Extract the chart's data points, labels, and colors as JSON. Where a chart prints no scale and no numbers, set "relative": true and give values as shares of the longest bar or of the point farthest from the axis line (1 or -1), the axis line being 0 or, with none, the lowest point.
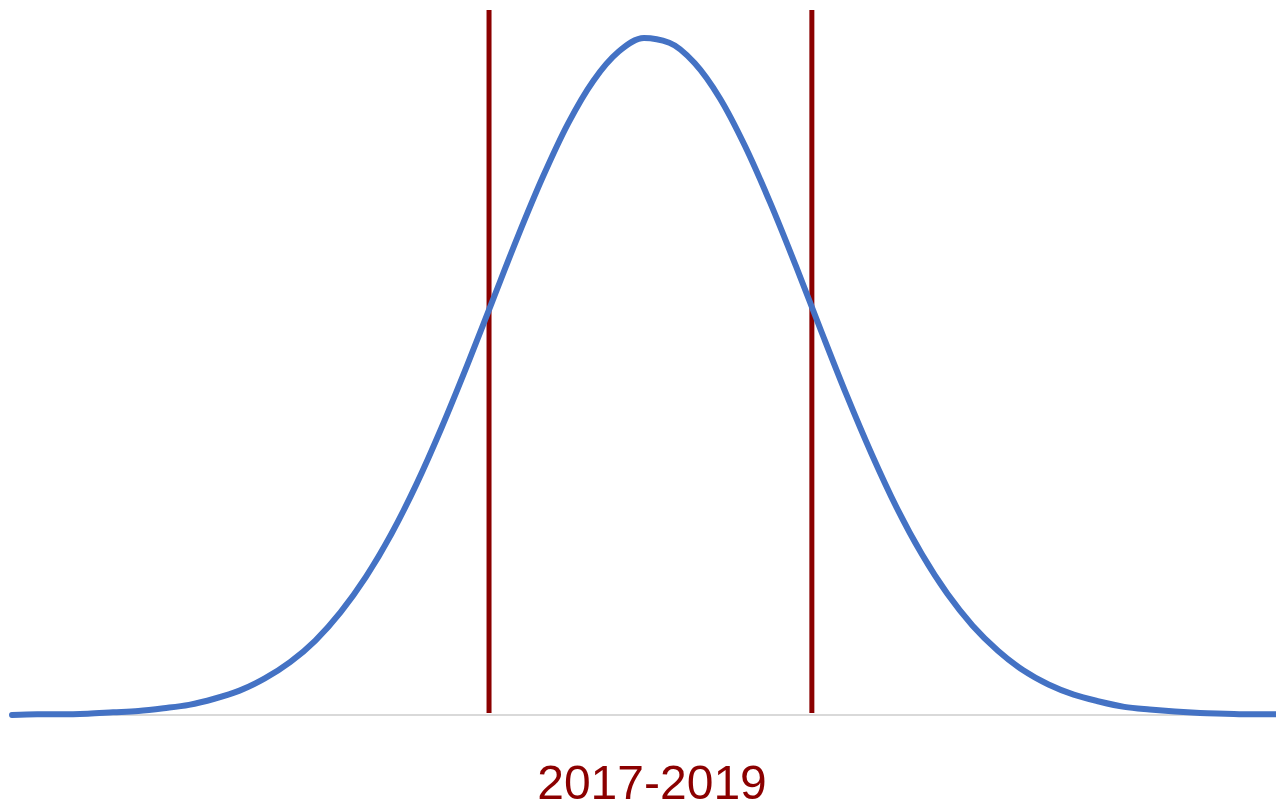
{
  "chart_data": {
    "type": "line",
    "relative": true,
    "xlabel": "2017-2019",
    "categories": [
      null,
      null,
      null,
      null,
      null,
      null,
      null,
      null,
      null,
      null,
      null,
      null,
      null,
      null,
      null,
      null,
      null,
      null,
      null,
      null,
      null,
      null,
      null,
      null,
      null,
      null,
      null,
      null,
      null,
      null,
      null,
      null,
      null,
      null,
      null,
      null,
      null,
      null,
      null,
      null,
      null,
      null,
      null,
      null,
      null,
      null,
      null,
      null,
      null,
      null,
      null
    ],
    "series": [
      {
        "color": "#4472c4",
        "values": [
          0,
          0.001,
          0.001,
          0.002,
          0.004,
          0.006,
          0.01,
          0.015,
          0.024,
          0.036,
          0.054,
          0.078,
          0.11,
          0.152,
          0.204,
          0.267,
          0.341,
          0.425,
          0.516,
          0.611,
          0.706,
          0.795,
          0.874,
          0.937,
          0.98,
          1,
          0.993,
          0.963,
          0.911,
          0.84,
          0.756,
          0.664,
          0.568,
          0.474,
          0.386,
          0.306,
          0.237,
          0.179,
          0.132,
          0.095,
          0.066,
          0.045,
          0.03,
          0.02,
          0.012,
          0.008,
          0.005,
          0.003,
          0.002,
          0.001,
          0.001
        ]
      }
    ],
    "line_style": "solid"
  }
}
